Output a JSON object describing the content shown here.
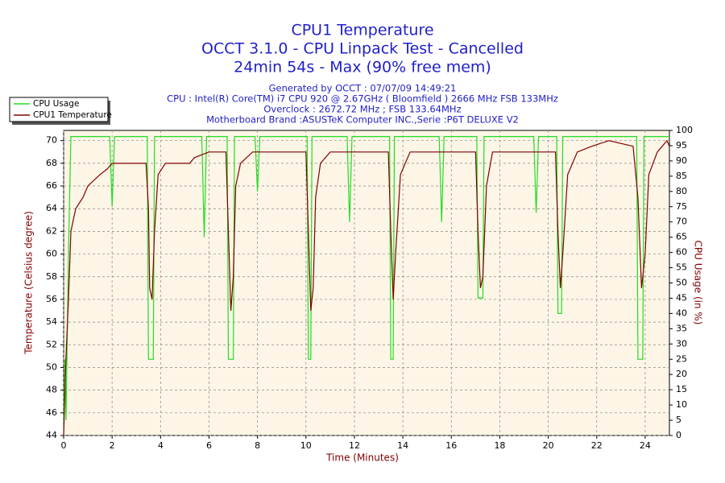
{
  "chart_data": {
    "type": "line",
    "title": "CPU1 Temperature",
    "subtitle": [
      "OCCT 3.1.0 - CPU Linpack Test - Cancelled",
      "24min 54s - Max (90% free mem)"
    ],
    "info": [
      "Generated by OCCT : 07/07/09 14:49:21",
      "CPU : Intel(R) Core(TM) i7 CPU 920 @ 2.67GHz ( Bloomfield ) 2666 MHz FSB 133MHz",
      "Overclock : 2672.72 MHz ; FSB 133.64MHz",
      "Motherboard Brand :ASUSTeK Computer INC.,Serie :P6T DELUXE V2"
    ],
    "xlabel": "Time (Minutes)",
    "ylabel": "Temperature (Celsius degree)",
    "y2label": "CPU Usage (in %)",
    "xlim": [
      0,
      25
    ],
    "xticks": [
      0,
      2,
      4,
      6,
      8,
      10,
      12,
      14,
      16,
      18,
      20,
      22,
      24
    ],
    "ylim": [
      44,
      70.9
    ],
    "yticks": [
      44,
      46,
      48,
      50,
      52,
      54,
      56,
      58,
      60,
      62,
      64,
      66,
      68,
      70
    ],
    "y2lim": [
      0,
      100
    ],
    "y2ticks": [
      0,
      5,
      10,
      15,
      20,
      25,
      30,
      35,
      40,
      45,
      50,
      55,
      60,
      65,
      70,
      75,
      80,
      85,
      90,
      95,
      100
    ],
    "grid": true,
    "legend": "upper left",
    "series": [
      {
        "name": "CPU Usage",
        "color": "#22dd22",
        "axis": "y2",
        "x": [
          0,
          0.05,
          0.1,
          0.2,
          0.3,
          1.9,
          2.0,
          2.1,
          3.45,
          3.5,
          3.7,
          3.75,
          5.7,
          5.8,
          5.9,
          6.75,
          6.8,
          7.0,
          7.05,
          7.9,
          8.0,
          8.1,
          10.05,
          10.1,
          10.2,
          10.25,
          11.7,
          11.8,
          11.9,
          13.45,
          13.5,
          13.6,
          13.65,
          15.5,
          15.6,
          15.7,
          17.05,
          17.1,
          17.3,
          17.35,
          19.4,
          19.5,
          19.6,
          20.35,
          20.4,
          20.55,
          20.6,
          23.65,
          23.7,
          23.9,
          23.95,
          25
        ],
        "values": [
          0,
          25,
          5,
          60,
          98,
          98,
          75,
          98,
          98,
          25,
          25,
          98,
          98,
          65,
          98,
          98,
          25,
          25,
          98,
          98,
          80,
          98,
          98,
          25,
          25,
          98,
          98,
          70,
          98,
          98,
          25,
          25,
          98,
          98,
          70,
          98,
          98,
          45,
          45,
          98,
          98,
          73,
          98,
          98,
          40,
          40,
          98,
          98,
          25,
          25,
          98,
          98
        ]
      },
      {
        "name": "CPU1 Temperature",
        "color": "#800000",
        "x": [
          0,
          0.1,
          0.2,
          0.3,
          0.5,
          0.8,
          1.0,
          1.5,
          1.8,
          2.0,
          3.4,
          3.5,
          3.55,
          3.65,
          3.75,
          3.9,
          4.2,
          5.2,
          5.4,
          6.0,
          6.7,
          6.8,
          6.9,
          7.0,
          7.1,
          7.3,
          7.8,
          10.0,
          10.1,
          10.2,
          10.3,
          10.4,
          10.6,
          11.0,
          13.4,
          13.5,
          13.6,
          13.7,
          13.9,
          14.3,
          17.0,
          17.1,
          17.2,
          17.3,
          17.45,
          17.7,
          20.3,
          20.4,
          20.5,
          20.6,
          20.8,
          21.2,
          21.8,
          22.5,
          23.5,
          23.7,
          23.85,
          24.0,
          24.15,
          24.5,
          24.9,
          25
        ],
        "values": [
          44,
          51,
          56,
          62,
          64,
          65,
          66,
          67,
          67.5,
          68,
          68,
          64,
          57,
          56,
          62,
          67,
          68,
          68,
          68.5,
          69,
          69,
          62,
          55,
          58,
          66,
          68,
          69,
          69,
          62,
          55,
          57,
          65,
          68,
          69,
          69,
          62,
          56,
          60,
          67,
          69,
          69,
          62,
          57,
          58,
          66,
          69,
          69,
          62,
          57,
          60,
          67,
          69,
          69.5,
          70,
          69.5,
          65,
          57,
          60,
          67,
          69,
          70,
          69.5
        ]
      }
    ]
  }
}
